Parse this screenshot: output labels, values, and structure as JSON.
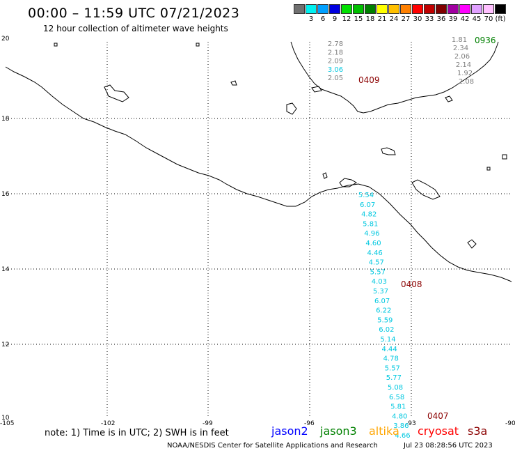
{
  "header": {
    "title": "00:00 – 11:59 UTC 07/21/2023",
    "subtitle": "12 hour collection of altimeter wave heights"
  },
  "scale": {
    "colors": [
      "#707070",
      "#00f0f0",
      "#00a0ff",
      "#0000e0",
      "#00e000",
      "#00c000",
      "#008000",
      "#ffff00",
      "#ffc000",
      "#ff8000",
      "#ff0000",
      "#c00000",
      "#800000",
      "#a000a0",
      "#ff00ff",
      "#e0a0ff",
      "#ffc0ff",
      "#000000"
    ],
    "labels": [
      "3",
      "6",
      "9",
      "12",
      "15",
      "18",
      "21",
      "24",
      "27",
      "30",
      "33",
      "36",
      "39",
      "42",
      "45",
      "70"
    ],
    "unit": "(ft)"
  },
  "axes": {
    "lon_labels": [
      "-105",
      "-102",
      "-99",
      "-96",
      "-93",
      "-90"
    ],
    "lat_labels": [
      "20",
      "18",
      "16",
      "14",
      "12",
      "10"
    ]
  },
  "passes": [
    {
      "time": "0409",
      "time_color": "#8b0000",
      "values": [
        {
          "v": "2.78",
          "c": "#808080"
        },
        {
          "v": "2.18",
          "c": "#808080"
        },
        {
          "v": "2.09",
          "c": "#808080"
        },
        {
          "v": "3.06",
          "c": "#00c8e0"
        },
        {
          "v": "2.05",
          "c": "#808080"
        }
      ]
    },
    {
      "time": "0936",
      "time_color": "#008000",
      "values": [
        {
          "v": "1.81",
          "c": "#808080"
        },
        {
          "v": "2.34",
          "c": "#808080"
        },
        {
          "v": "2.06",
          "c": "#808080"
        },
        {
          "v": "2.14",
          "c": "#808080"
        },
        {
          "v": "1.92",
          "c": "#808080"
        },
        {
          "v": "2.08",
          "c": "#808080"
        }
      ]
    },
    {
      "time": "0408",
      "time_color": "#8b0000",
      "values": [
        {
          "v": "5.54",
          "c": "#00c8e0"
        },
        {
          "v": "6.07",
          "c": "#00c8e0"
        },
        {
          "v": "4.82",
          "c": "#00c8e0"
        },
        {
          "v": "5.81",
          "c": "#00c8e0"
        },
        {
          "v": "4.96",
          "c": "#00c8e0"
        },
        {
          "v": "4.60",
          "c": "#00c8e0"
        },
        {
          "v": "4.46",
          "c": "#00c8e0"
        },
        {
          "v": "4.57",
          "c": "#00c8e0"
        },
        {
          "v": "5.57",
          "c": "#00c8e0"
        },
        {
          "v": "4.03",
          "c": "#00c8e0"
        },
        {
          "v": "5.37",
          "c": "#00c8e0"
        },
        {
          "v": "6.07",
          "c": "#00c8e0"
        },
        {
          "v": "6.22",
          "c": "#00c8e0"
        },
        {
          "v": "5.59",
          "c": "#00c8e0"
        },
        {
          "v": "6.02",
          "c": "#00c8e0"
        },
        {
          "v": "5.14",
          "c": "#00c8e0"
        },
        {
          "v": "4.44",
          "c": "#00c8e0"
        },
        {
          "v": "4.78",
          "c": "#00c8e0"
        },
        {
          "v": "5.57",
          "c": "#00c8e0"
        },
        {
          "v": "5.77",
          "c": "#00c8e0"
        },
        {
          "v": "5.08",
          "c": "#00c8e0"
        },
        {
          "v": "6.58",
          "c": "#00c8e0"
        },
        {
          "v": "5.81",
          "c": "#00c8e0"
        },
        {
          "v": "4.80",
          "c": "#00c8e0"
        },
        {
          "v": "3.86",
          "c": "#00c8e0"
        },
        {
          "v": "4.66",
          "c": "#00c8e0"
        }
      ]
    },
    {
      "time": "0407",
      "time_color": "#8b0000",
      "values": []
    }
  ],
  "footer": {
    "note": "note: 1) Time is in UTC; 2) SWH is in feet",
    "satellites": [
      {
        "name": "jason2",
        "color": "#0000ff"
      },
      {
        "name": "jason3",
        "color": "#008000"
      },
      {
        "name": "altika",
        "color": "#ffa500"
      },
      {
        "name": "cryosat",
        "color": "#ff0000"
      },
      {
        "name": "s3a",
        "color": "#8b0000"
      }
    ],
    "credit": "NOAA/NESDIS Center for Satellite Applications and Research",
    "date": "Jul 23 08:28:56 UTC 2023"
  }
}
